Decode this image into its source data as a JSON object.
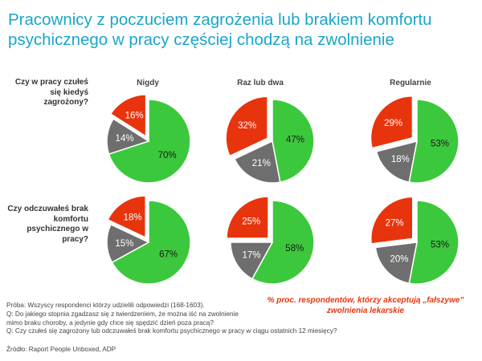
{
  "title": "Pracownicy z poczuciem zagrożenia lub brakiem komfortu psychicznego w pracy częściej chodzą na zwolnienie",
  "columns": [
    "Nigdy",
    "Raz lub dwa",
    "Regularnie"
  ],
  "rows": [
    "Czy w pracy czułeś się kiedyś zagrożony?",
    "Czy odczuwałeś brak komfortu psychicznego w pracy?"
  ],
  "legend_note": "% proc. respondentów, którzy akceptują „fałszywe” zwolnienia lekarskie",
  "notes": [
    "Próba: Wszyscy respondenci którzy udzielili odpowiedzi (168-1603).",
    "Q: Do jakiego stopnia zgadzasz się z twierdzeniem, że można iść na zwolnienie",
    "mimo braku choroby, a jedynie gdy chce się spędzić dzień poza pracą?",
    "Q: Czy czułeś się zagrożony lub odczuwałeś brak komfortu psychicznego w pracy w ciągu ostatnich 12 miesięcy?"
  ],
  "source": "Źródło: Raport People Unboxed, ADP",
  "colors": {
    "title": "#1aa6c9",
    "green": "#3cc83c",
    "grey": "#6e6e6e",
    "red": "#e8340c"
  },
  "chart_data": [
    {
      "type": "pie",
      "row": "Czy w pracy czułeś się kiedyś zagrożony?",
      "column": "Nigdy",
      "slices": [
        {
          "value": 70,
          "label": "70%",
          "color": "#3cc83c"
        },
        {
          "value": 14,
          "label": "14%",
          "color": "#6e6e6e"
        },
        {
          "value": 16,
          "label": "16%",
          "color": "#e8340c"
        }
      ]
    },
    {
      "type": "pie",
      "row": "Czy w pracy czułeś się kiedyś zagrożony?",
      "column": "Raz lub dwa",
      "slices": [
        {
          "value": 47,
          "label": "47%",
          "color": "#3cc83c"
        },
        {
          "value": 21,
          "label": "21%",
          "color": "#6e6e6e"
        },
        {
          "value": 32,
          "label": "32%",
          "color": "#e8340c"
        }
      ]
    },
    {
      "type": "pie",
      "row": "Czy w pracy czułeś się kiedyś zagrożony?",
      "column": "Regularnie",
      "slices": [
        {
          "value": 53,
          "label": "53%",
          "color": "#3cc83c"
        },
        {
          "value": 18,
          "label": "18%",
          "color": "#6e6e6e"
        },
        {
          "value": 29,
          "label": "29%",
          "color": "#e8340c"
        }
      ]
    },
    {
      "type": "pie",
      "row": "Czy odczuwałeś brak komfortu psychicznego w pracy?",
      "column": "Nigdy",
      "slices": [
        {
          "value": 67,
          "label": "67%",
          "color": "#3cc83c"
        },
        {
          "value": 15,
          "label": "15%",
          "color": "#6e6e6e"
        },
        {
          "value": 18,
          "label": "18%",
          "color": "#e8340c"
        }
      ]
    },
    {
      "type": "pie",
      "row": "Czy odczuwałeś brak komfortu psychicznego w pracy?",
      "column": "Raz lub dwa",
      "slices": [
        {
          "value": 58,
          "label": "58%",
          "color": "#3cc83c"
        },
        {
          "value": 17,
          "label": "17%",
          "color": "#6e6e6e"
        },
        {
          "value": 25,
          "label": "25%",
          "color": "#e8340c"
        }
      ]
    },
    {
      "type": "pie",
      "row": "Czy odczuwałeś brak komfortu psychicznego w pracy?",
      "column": "Regularnie",
      "slices": [
        {
          "value": 53,
          "label": "53%",
          "color": "#3cc83c"
        },
        {
          "value": 20,
          "label": "20%",
          "color": "#6e6e6e"
        },
        {
          "value": 27,
          "label": "27%",
          "color": "#e8340c"
        }
      ]
    }
  ]
}
